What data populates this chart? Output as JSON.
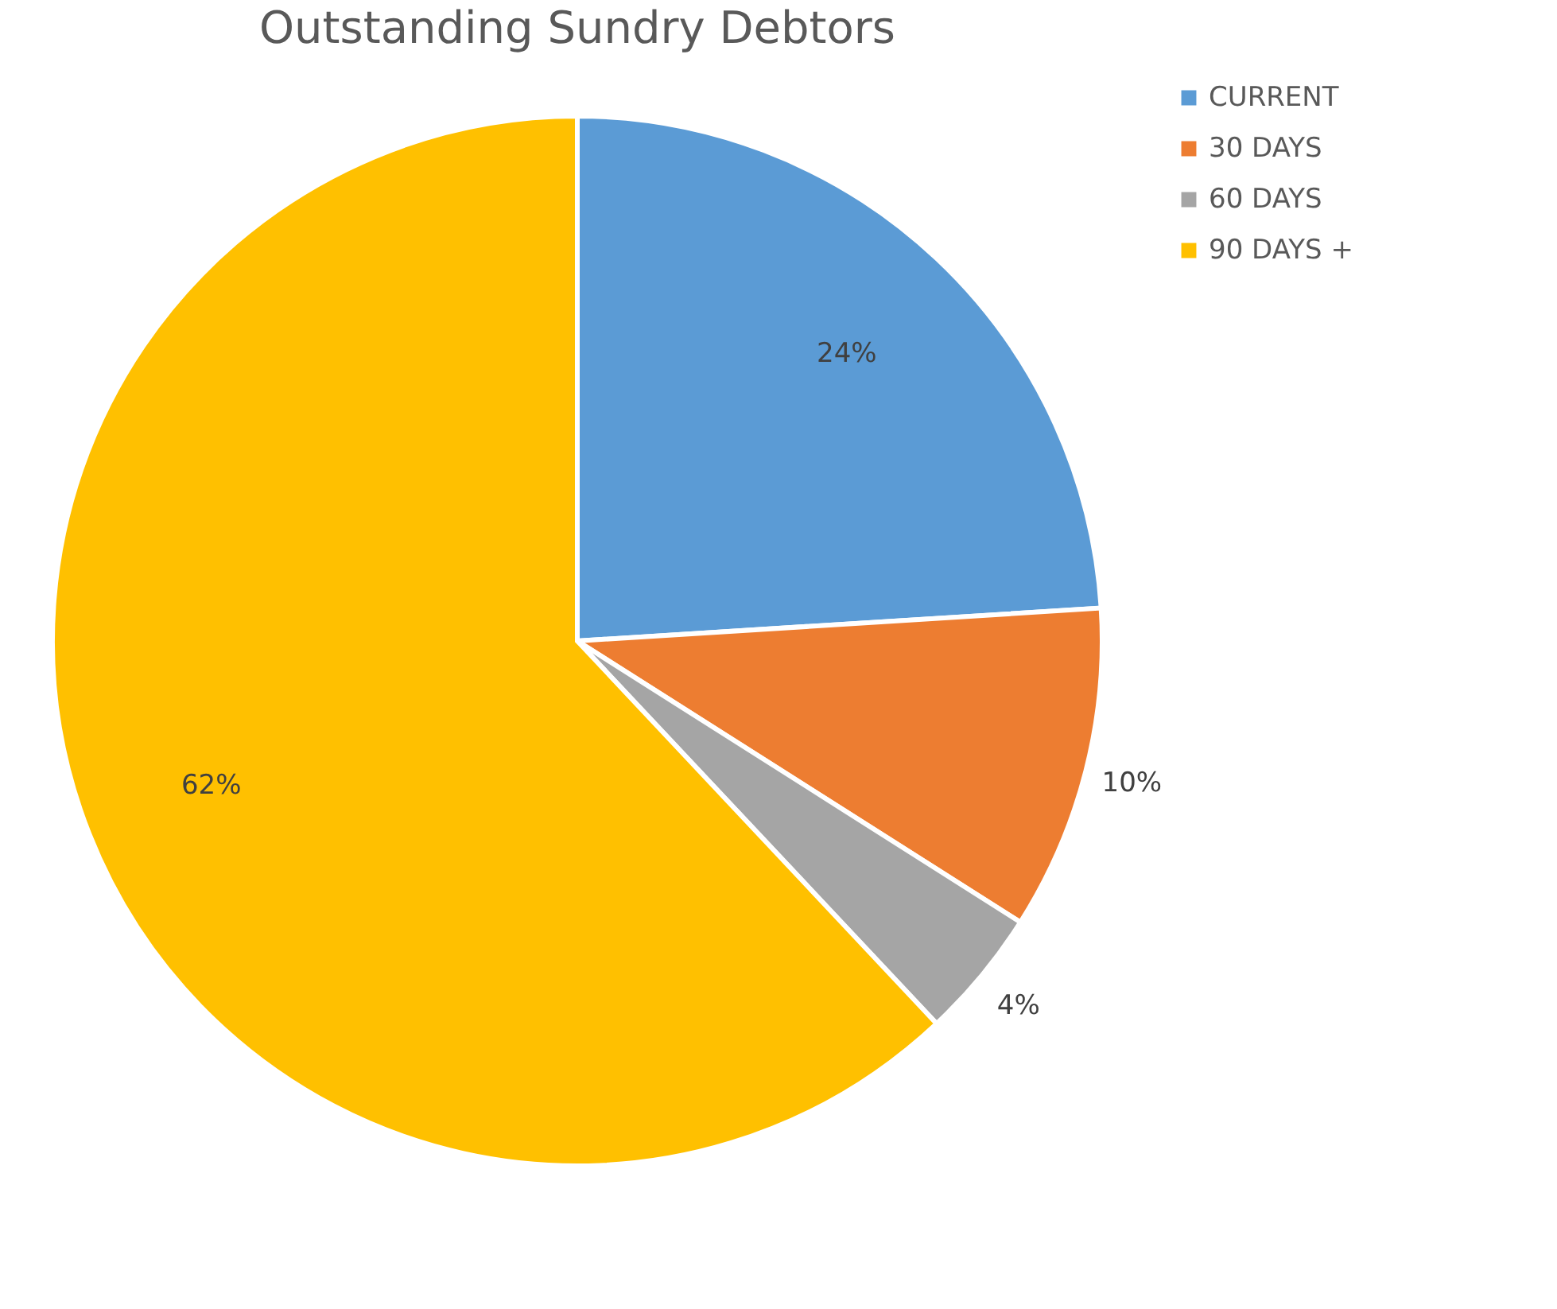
{
  "chart_data": {
    "type": "pie",
    "title": "Outstanding Sundry Debtors",
    "categories": [
      "CURRENT",
      "30 DAYS",
      "60 DAYS",
      "90 DAYS +"
    ],
    "values": [
      24,
      10,
      4,
      62
    ],
    "colors": [
      "#5b9bd5",
      "#ed7d31",
      "#a5a5a5",
      "#ffc000"
    ],
    "value_labels": [
      "24%",
      "10%",
      "4%",
      "62%"
    ],
    "legend": "right"
  }
}
